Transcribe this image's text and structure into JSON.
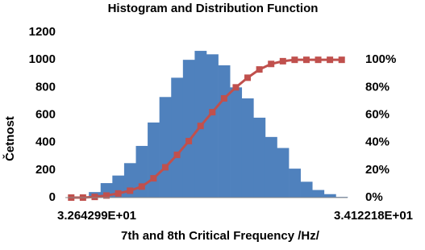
{
  "chart_data": {
    "type": "bar",
    "title": "Histogram and Distribution Function",
    "x_label": "7th and 8th Critical Frequency /Hz/",
    "y_label": "Četnost",
    "categories": [
      "3.264299E+01",
      null,
      null,
      null,
      null,
      null,
      null,
      null,
      null,
      null,
      null,
      null,
      null,
      null,
      null,
      null,
      null,
      null,
      null,
      null,
      null,
      null,
      null,
      "3.412218E+01"
    ],
    "series": [
      {
        "name": "Četnost",
        "type": "bar",
        "color": "#4f81bd",
        "values": [
          0,
          0,
          40,
          105,
          160,
          250,
          375,
          545,
          730,
          870,
          1000,
          1065,
          1040,
          960,
          800,
          720,
          580,
          440,
          360,
          210,
          115,
          55,
          25,
          5
        ]
      },
      {
        "name": "Distribution",
        "type": "line",
        "axis": "y2",
        "color": "#c0504d",
        "values": [
          0,
          0,
          0.5,
          1.5,
          3,
          5,
          8,
          14,
          22,
          31,
          41,
          52,
          62,
          72,
          80,
          87,
          93,
          97,
          99,
          100,
          100,
          100,
          100,
          100
        ]
      }
    ],
    "ylim": [
      0,
      1200
    ],
    "yticks": [
      0,
      200,
      400,
      600,
      800,
      1000,
      1200
    ],
    "y2lim": [
      0,
      120
    ],
    "y2ticks": [
      {
        "value": 0,
        "label": "0%"
      },
      {
        "value": 20,
        "label": "20%"
      },
      {
        "value": 40,
        "label": "40%"
      },
      {
        "value": 60,
        "label": "60%"
      },
      {
        "value": 80,
        "label": "80%"
      },
      {
        "value": 100,
        "label": "100%"
      }
    ],
    "grid": false
  }
}
